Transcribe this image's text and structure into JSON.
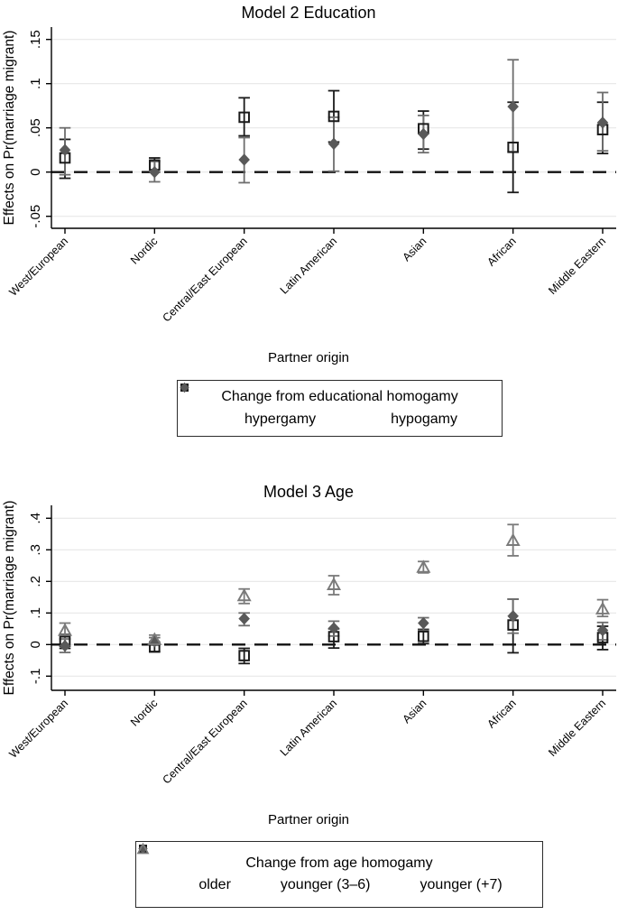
{
  "figure": {
    "background": "#ffffff",
    "axis_color": "#000000",
    "grid_color": "#e7e7e7",
    "zero_line_color": "#111111"
  },
  "chart_data": [
    {
      "type": "errorbar",
      "title": "Model 2 Education",
      "ylabel": "Effects on Pr(marriage migrant)",
      "xlabel": "Partner origin",
      "categories": [
        "West/European",
        "Nordic",
        "Central/East European",
        "Latin American",
        "Asian",
        "African",
        "Middle Eastern"
      ],
      "yticks": [
        {
          "value": 0.15,
          "label": ".15"
        },
        {
          "value": 0.1,
          "label": ".1"
        },
        {
          "value": 0.05,
          "label": ".05"
        },
        {
          "value": 0.0,
          "label": "0"
        },
        {
          "value": -0.05,
          "label": "-.05"
        }
      ],
      "ylim": [
        -0.064,
        0.164
      ],
      "grid": true,
      "zero_line": true,
      "legend": {
        "title": "Change from educational homogamy",
        "position": "bottom",
        "items": [
          {
            "label": "hypergamy",
            "marker": "square-hollow",
            "color": "#1a1a1a"
          },
          {
            "label": "hypogamy",
            "marker": "diamond-filled",
            "color": "#595959"
          }
        ]
      },
      "series": [
        {
          "name": "hypergamy",
          "marker": "square-hollow",
          "color": "#1a1a1a",
          "bar_color": "#1a1a1a",
          "values": [
            0.016,
            0.008,
            0.062,
            0.063,
            0.049,
            0.028,
            0.048
          ],
          "ci_low": [
            -0.007,
            0.0,
            0.041,
            0.034,
            0.026,
            -0.023,
            0.021
          ],
          "ci_high": [
            0.037,
            0.016,
            0.084,
            0.092,
            0.069,
            0.079,
            0.079
          ]
        },
        {
          "name": "hypogamy",
          "marker": "diamond-filled",
          "color": "#595959",
          "bar_color": "#6e6e6e",
          "values": [
            0.025,
            0.0,
            0.014,
            0.032,
            0.043,
            0.074,
            0.056
          ],
          "ci_low": [
            -0.003,
            -0.011,
            -0.012,
            0.001,
            0.022,
            0.023,
            0.024
          ],
          "ci_high": [
            0.05,
            0.012,
            0.039,
            0.062,
            0.064,
            0.127,
            0.09
          ]
        }
      ]
    },
    {
      "type": "errorbar",
      "title": "Model 3 Age",
      "ylabel": "Effects on Pr(marriage migrant)",
      "xlabel": "Partner origin",
      "categories": [
        "West/European",
        "Nordic",
        "Central/East European",
        "Latin American",
        "Asian",
        "African",
        "Middle Eastern"
      ],
      "yticks": [
        {
          "value": 0.4,
          "label": ".4"
        },
        {
          "value": 0.3,
          "label": ".3"
        },
        {
          "value": 0.2,
          "label": ".2"
        },
        {
          "value": 0.1,
          "label": ".1"
        },
        {
          "value": 0.0,
          "label": "0"
        },
        {
          "value": -0.1,
          "label": "-.1"
        }
      ],
      "ylim": [
        -0.145,
        0.44
      ],
      "grid": true,
      "zero_line": true,
      "legend": {
        "title": "Change from age homogamy",
        "position": "bottom",
        "items": [
          {
            "label": "older",
            "marker": "square-hollow",
            "color": "#1a1a1a"
          },
          {
            "label": "younger (3–6)",
            "marker": "diamond-filled",
            "color": "#595959"
          },
          {
            "label": "younger (+7)",
            "marker": "triangle-hollow",
            "color": "#7a7a7a"
          }
        ]
      },
      "series": [
        {
          "name": "older",
          "marker": "square-hollow",
          "color": "#1a1a1a",
          "bar_color": "#1a1a1a",
          "values": [
            0.01,
            -0.008,
            -0.035,
            0.025,
            0.026,
            0.062,
            0.022
          ],
          "ci_low": [
            -0.012,
            -0.022,
            -0.06,
            -0.011,
            0.003,
            -0.026,
            -0.016
          ],
          "ci_high": [
            0.032,
            0.006,
            -0.012,
            0.05,
            0.048,
            0.144,
            0.058
          ]
        },
        {
          "name": "younger (3–6)",
          "marker": "diamond-filled",
          "color": "#595959",
          "bar_color": "#6e6e6e",
          "values": [
            -0.004,
            0.01,
            0.082,
            0.052,
            0.068,
            0.09,
            0.045
          ],
          "ci_low": [
            -0.025,
            -0.002,
            0.06,
            0.027,
            0.045,
            0.036,
            0.015
          ],
          "ci_high": [
            0.017,
            0.022,
            0.1,
            0.074,
            0.085,
            0.144,
            0.07
          ]
        },
        {
          "name": "younger (+7)",
          "marker": "triangle-hollow",
          "color": "#7a7a7a",
          "bar_color": "#7a7a7a",
          "values": [
            0.045,
            0.016,
            0.155,
            0.19,
            0.245,
            0.33,
            0.113
          ],
          "ci_low": [
            0.018,
            0.003,
            0.13,
            0.158,
            0.227,
            0.281,
            0.089
          ],
          "ci_high": [
            0.068,
            0.03,
            0.176,
            0.218,
            0.263,
            0.38,
            0.142
          ]
        }
      ]
    }
  ]
}
